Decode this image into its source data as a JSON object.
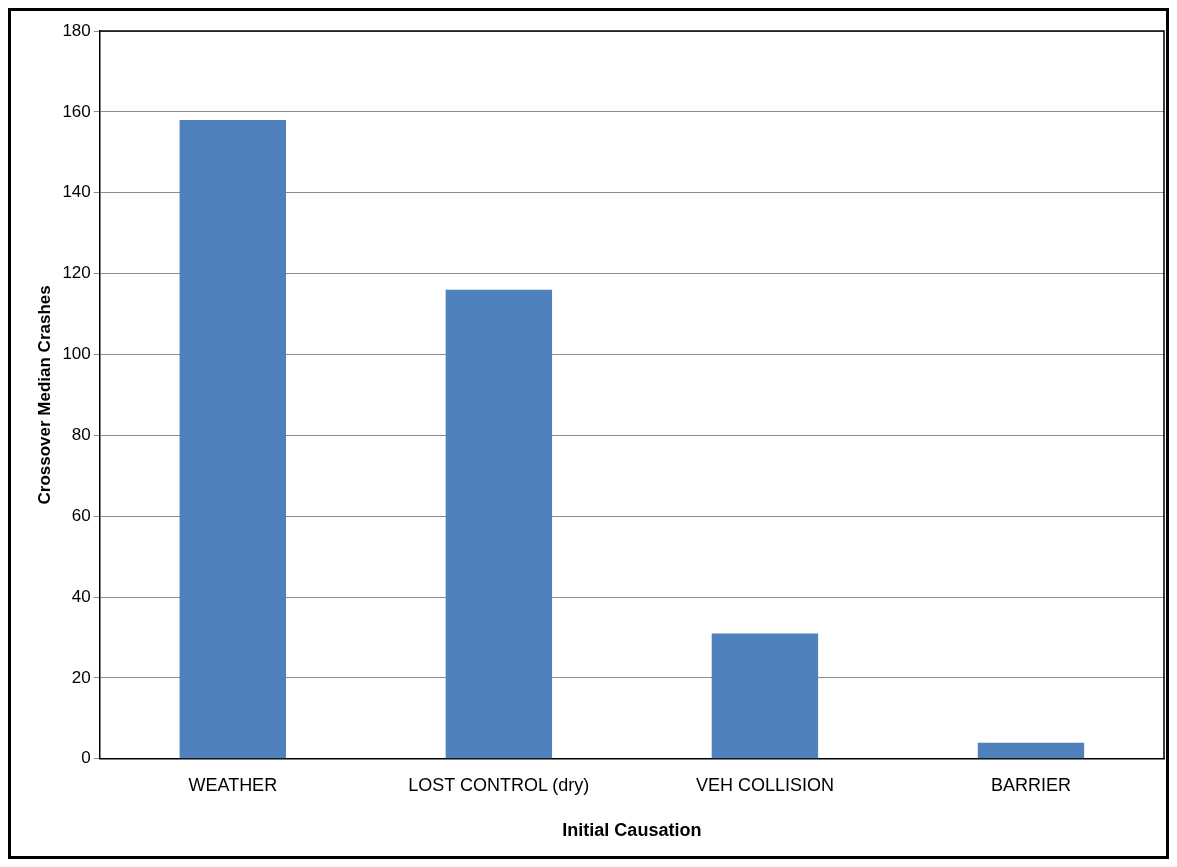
{
  "chart_data": {
    "type": "bar",
    "xlabel": "Initial Causation",
    "ylabel": "Crossover Median Crashes",
    "categories": [
      "WEATHER",
      "LOST CONTROL (dry)",
      "VEH COLLISION",
      "BARRIER"
    ],
    "values": [
      158,
      116,
      31,
      4
    ],
    "color": "#4f81bd",
    "ylim": [
      0,
      180
    ],
    "yticks": [
      0,
      20,
      40,
      60,
      80,
      100,
      120,
      140,
      160,
      180
    ],
    "grid": "y"
  }
}
